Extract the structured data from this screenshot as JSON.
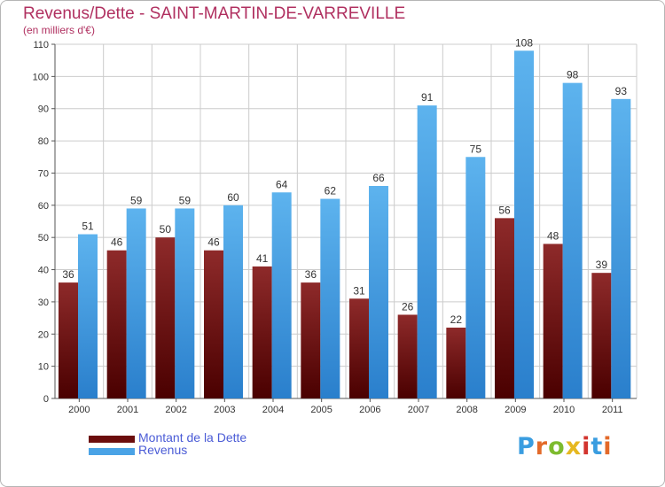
{
  "title": "Revenus/Dette - SAINT-MARTIN-DE-VARREVILLE",
  "subtitle": "(en milliers d'€)",
  "colors": {
    "dette": "#7a1a1a",
    "revenus": "#4aa3e6",
    "title": "#b03060",
    "legend_text": "#4a5bd6",
    "grid": "#cccccc"
  },
  "legend": [
    {
      "label": "Montant de la Dette",
      "color": "#6b0d0d"
    },
    {
      "label": "Revenus",
      "color": "#4aa3e6"
    }
  ],
  "logo": {
    "text": "Proxiti",
    "letters": [
      {
        "ch": "P",
        "color": "#3a9de0"
      },
      {
        "ch": "r",
        "color": "#e36a2a"
      },
      {
        "ch": "o",
        "color": "#7dbb2e"
      },
      {
        "ch": "x",
        "color": "#e6b820"
      },
      {
        "ch": "i",
        "color": "#d2342e"
      },
      {
        "ch": "t",
        "color": "#3a9de0"
      },
      {
        "ch": "i",
        "color": "#e36a2a"
      }
    ]
  },
  "chart_data": {
    "type": "bar",
    "title": "Revenus/Dette - SAINT-MARTIN-DE-VARREVILLE",
    "subtitle": "(en milliers d'€)",
    "categories": [
      "2000",
      "2001",
      "2002",
      "2003",
      "2004",
      "2005",
      "2006",
      "2007",
      "2008",
      "2009",
      "2010",
      "2011"
    ],
    "series": [
      {
        "name": "Montant de la Dette",
        "values": [
          36,
          46,
          50,
          46,
          41,
          36,
          31,
          26,
          22,
          56,
          48,
          39
        ]
      },
      {
        "name": "Revenus",
        "values": [
          51,
          59,
          59,
          60,
          64,
          62,
          66,
          91,
          75,
          108,
          98,
          93
        ]
      }
    ],
    "ylim": [
      0,
      110
    ],
    "yticks": [
      0,
      10,
      20,
      30,
      40,
      50,
      60,
      70,
      80,
      90,
      100,
      110
    ],
    "grid": true,
    "legend_position": "bottom-left"
  }
}
